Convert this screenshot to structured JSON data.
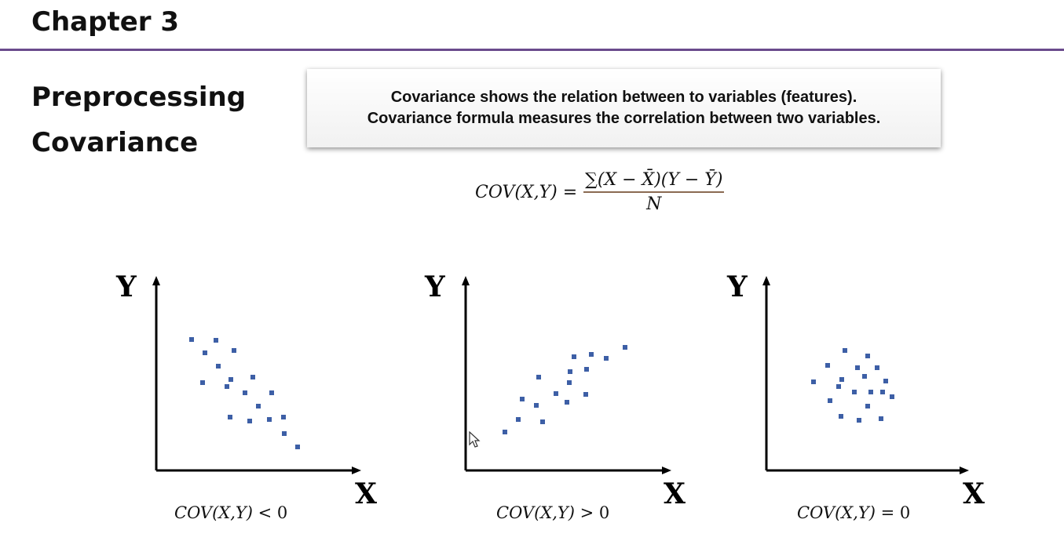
{
  "header": {
    "chapter": "Chapter 3"
  },
  "left": {
    "title1": "Preprocessing",
    "title2": "Covariance"
  },
  "callout": {
    "line1": "Covariance shows the relation between to variables (features).",
    "line2": "Covariance formula measures the correlation between two variables."
  },
  "formula": {
    "lhs": "COV(X,Y) =",
    "numerator": "∑(X − X̄)(Y − Ȳ)",
    "denominator": "N"
  },
  "plots": [
    {
      "ylabel": "Y",
      "xlabel": "X",
      "caption_expr": "COV(X,Y)",
      "caption_op": " < 0"
    },
    {
      "ylabel": "Y",
      "xlabel": "X",
      "caption_expr": "COV(X,Y)",
      "caption_op": " > 0"
    },
    {
      "ylabel": "Y",
      "xlabel": "X",
      "caption_expr": "COV(X,Y)",
      "caption_op": " = 0"
    }
  ],
  "colors": {
    "accent": "#6a4a8c",
    "point": "#3d5fa6"
  }
}
